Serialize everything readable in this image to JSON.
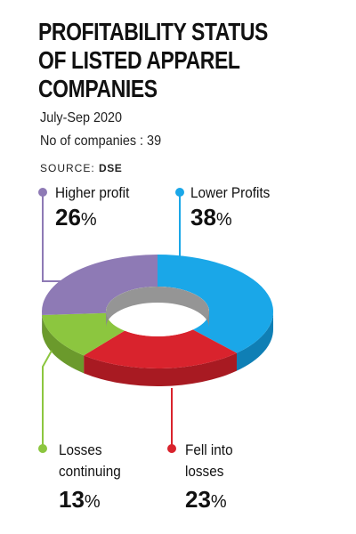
{
  "title_lines": [
    "PROFITABILITY STATUS",
    "OF LISTED APPAREL",
    "COMPANIES"
  ],
  "period": "July-Sep 2020",
  "companies_note": "No of companies : 39",
  "source_label": "SOURCE:",
  "source_name": "DSE",
  "percent_sign": "%",
  "chart_data": {
    "type": "pie",
    "style": "3d-donut",
    "labels": [
      "Lower Profits",
      "Fell into losses",
      "Losses continuing",
      "Higher profit"
    ],
    "values": [
      38,
      23,
      13,
      26
    ],
    "colors": [
      "#1aa7e8",
      "#d9232d",
      "#8cc63f",
      "#8e7ab5"
    ],
    "side_colors": [
      "#0f7fb5",
      "#a81a22",
      "#6b9a2c",
      "#6a5a8c"
    ],
    "legend": [
      {
        "label_lines": [
          "Higher profit"
        ],
        "value": "26"
      },
      {
        "label_lines": [
          "Lower Profits"
        ],
        "value": "38"
      },
      {
        "label_lines": [
          "Losses",
          "continuing"
        ],
        "value": "13"
      },
      {
        "label_lines": [
          "Fell into",
          "losses"
        ],
        "value": "23"
      }
    ]
  }
}
